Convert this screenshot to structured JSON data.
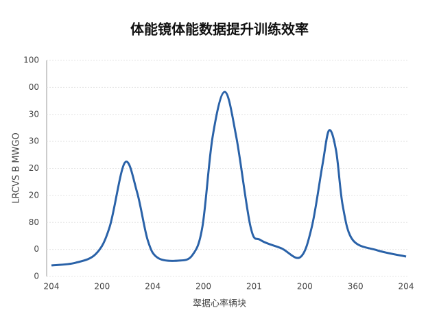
{
  "chart_data": {
    "type": "line",
    "title": "体能镜体能数据提升训练效率",
    "x_label": "翠据心率辆块",
    "y_label": "LRCVS B MWGO",
    "x": [
      0,
      0.47,
      0.88,
      1.15,
      1.45,
      1.69,
      1.9,
      2.1,
      2.5,
      2.78,
      2.98,
      3.18,
      3.42,
      3.65,
      3.93,
      4.13,
      4.54,
      4.91,
      5.14,
      5.35,
      5.48,
      5.62,
      5.75,
      5.95,
      6.43,
      7
    ],
    "series": [
      {
        "color": "#2a62a8",
        "values": [
          5.1,
          6.3,
          10.5,
          23,
          52.7,
          39,
          16.8,
          8.6,
          7.3,
          9.8,
          23,
          64.4,
          85.4,
          64.4,
          23,
          16.8,
          13,
          8.9,
          23,
          51.7,
          67.6,
          58,
          32.7,
          16.8,
          12.1,
          9.2
        ]
      }
    ],
    "xlim": [
      0,
      7
    ],
    "xticks": [
      {
        "value": 0,
        "label": "204"
      },
      {
        "value": 1,
        "label": "200"
      },
      {
        "value": 2,
        "label": "204"
      },
      {
        "value": 3,
        "label": "200"
      },
      {
        "value": 4,
        "label": "201"
      },
      {
        "value": 5,
        "label": "200"
      },
      {
        "value": 6,
        "label": "360"
      },
      {
        "value": 7,
        "label": "204"
      }
    ],
    "ylim": [
      0,
      100
    ],
    "yticks": [
      0,
      {
        "value": 12.5,
        "label": "0"
      },
      {
        "value": 25,
        "label": "80"
      },
      {
        "value": 37.5,
        "label": "20"
      },
      {
        "value": 50,
        "label": "20"
      },
      {
        "value": 62.5,
        "label": "30"
      },
      {
        "value": 75,
        "label": "30"
      },
      {
        "value": 87.5,
        "label": "00"
      },
      100
    ],
    "grid": true
  }
}
